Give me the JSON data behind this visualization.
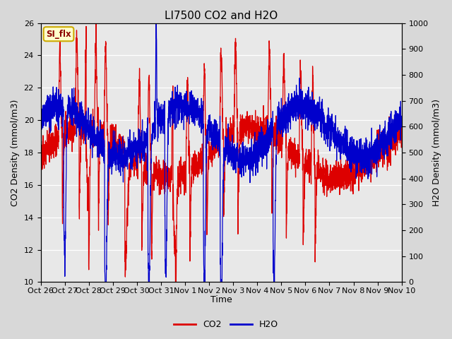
{
  "title": "LI7500 CO2 and H2O",
  "xlabel": "Time",
  "ylabel_left": "CO2 Density (mmol/m3)",
  "ylabel_right": "H2O Density (mmol/m3)",
  "ylim_left": [
    10,
    26
  ],
  "ylim_right": [
    0,
    1000
  ],
  "yticks_left": [
    10,
    12,
    14,
    16,
    18,
    20,
    22,
    24,
    26
  ],
  "yticks_right": [
    0,
    100,
    200,
    300,
    400,
    500,
    600,
    700,
    800,
    900,
    1000
  ],
  "x_tick_labels": [
    "Oct 26",
    "Oct 27",
    "Oct 28",
    "Oct 29",
    "Oct 30",
    "Oct 31",
    "Nov 1",
    "Nov 2",
    "Nov 3",
    "Nov 4",
    "Nov 5",
    "Nov 6",
    "Nov 7",
    "Nov 8",
    "Nov 9",
    "Nov 10"
  ],
  "fig_bg_color": "#d8d8d8",
  "plot_bg_color": "#e8e8e8",
  "co2_color": "#dd0000",
  "h2o_color": "#0000cc",
  "annotation_text": "SI_flx",
  "legend_co2": "CO2",
  "legend_h2o": "H2O",
  "title_fontsize": 11,
  "axis_fontsize": 9,
  "tick_fontsize": 8,
  "linewidth": 0.9
}
